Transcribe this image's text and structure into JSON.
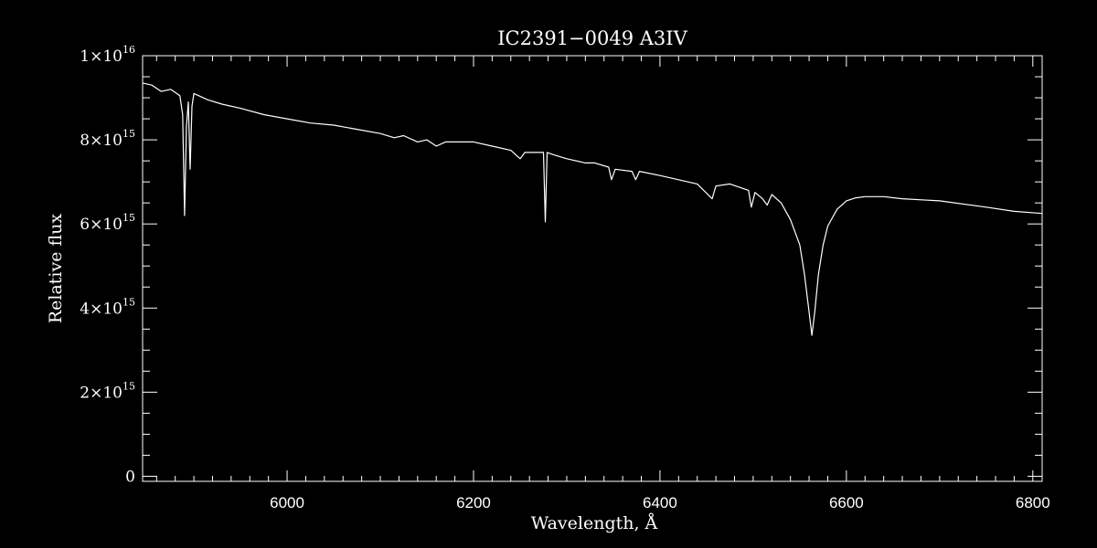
{
  "chart_data": {
    "type": "line",
    "title": "IC2391−0049   A3IV",
    "xlabel": "Wavelength, Å",
    "ylabel": "Relative flux",
    "xlim": [
      5845,
      6810
    ],
    "ylim": [
      -120000000000000.0,
      1e+16
    ],
    "grid": false,
    "x_ticks": [
      {
        "value": 6000,
        "label": "6000"
      },
      {
        "value": 6200,
        "label": "6200"
      },
      {
        "value": 6400,
        "label": "6400"
      },
      {
        "value": 6600,
        "label": "6600"
      },
      {
        "value": 6800,
        "label": "6800"
      }
    ],
    "y_ticks": [
      {
        "value": 0,
        "mantissa": "0",
        "exponent": ""
      },
      {
        "value": 2000000000000000.0,
        "mantissa": "2×10",
        "exponent": "15"
      },
      {
        "value": 4000000000000000.0,
        "mantissa": "4×10",
        "exponent": "15"
      },
      {
        "value": 6000000000000000.0,
        "mantissa": "6×10",
        "exponent": "15"
      },
      {
        "value": 8000000000000000.0,
        "mantissa": "8×10",
        "exponent": "15"
      },
      {
        "value": 1e+16,
        "mantissa": "1×10",
        "exponent": "16"
      }
    ],
    "colors": {
      "background": "#000000",
      "line": "#ffffff",
      "axes": "#ffffff"
    },
    "series": [
      {
        "color": "#ffffff",
        "x": [
          5845,
          5855,
          5865,
          5875,
          5885,
          5888,
          5890,
          5892,
          5894,
          5896,
          5898,
          5900,
          5905,
          5915,
          5930,
          5950,
          5975,
          6000,
          6025,
          6050,
          6075,
          6100,
          6115,
          6125,
          6140,
          6150,
          6160,
          6170,
          6185,
          6200,
          6220,
          6240,
          6250,
          6255,
          6265,
          6275,
          6277,
          6279,
          6285,
          6300,
          6320,
          6330,
          6345,
          6348,
          6352,
          6370,
          6374,
          6378,
          6400,
          6420,
          6440,
          6456,
          6460,
          6475,
          6495,
          6498,
          6502,
          6510,
          6515,
          6520,
          6530,
          6540,
          6550,
          6555,
          6560,
          6563,
          6566,
          6570,
          6575,
          6580,
          6590,
          6600,
          6610,
          6620,
          6640,
          6660,
          6700,
          6750,
          6780,
          6810
        ],
        "values": [
          9350000000000000.0,
          9300000000000000.0,
          9150000000000000.0,
          9200000000000000.0,
          9050000000000000.0,
          8600000000000000.0,
          6200000000000000.0,
          8300000000000000.0,
          8900000000000000.0,
          7300000000000000.0,
          8800000000000000.0,
          9100000000000000.0,
          9050000000000000.0,
          8950000000000000.0,
          8850000000000000.0,
          8750000000000000.0,
          8600000000000000.0,
          8500000000000000.0,
          8400000000000000.0,
          8350000000000000.0,
          8250000000000000.0,
          8150000000000000.0,
          8050000000000000.0,
          8100000000000000.0,
          7950000000000000.0,
          8000000000000000.0,
          7850000000000000.0,
          7950000000000000.0,
          7950000000000000.0,
          7950000000000000.0,
          7850000000000000.0,
          7750000000000000.0,
          7550000000000000.0,
          7700000000000000.0,
          7700000000000000.0,
          7700000000000000.0,
          6050000000000000.0,
          7700000000000000.0,
          7650000000000000.0,
          7550000000000000.0,
          7450000000000000.0,
          7450000000000000.0,
          7350000000000000.0,
          7050000000000000.0,
          7300000000000000.0,
          7250000000000000.0,
          7050000000000000.0,
          7250000000000000.0,
          7150000000000000.0,
          7050000000000000.0,
          6950000000000000.0,
          6600000000000000.0,
          6900000000000000.0,
          6950000000000000.0,
          6800000000000000.0,
          6400000000000000.0,
          6750000000000000.0,
          6600000000000000.0,
          6450000000000000.0,
          6700000000000000.0,
          6500000000000000.0,
          6100000000000000.0,
          5500000000000000.0,
          4800000000000000.0,
          3900000000000000.0,
          3350000000000000.0,
          3900000000000000.0,
          4800000000000000.0,
          5500000000000000.0,
          5950000000000000.0,
          6350000000000000.0,
          6550000000000000.0,
          6620000000000000.0,
          6650000000000000.0,
          6650000000000000.0,
          6600000000000000.0,
          6550000000000000.0,
          6400000000000000.0,
          6300000000000000.0,
          6250000000000000.0
        ]
      }
    ]
  }
}
